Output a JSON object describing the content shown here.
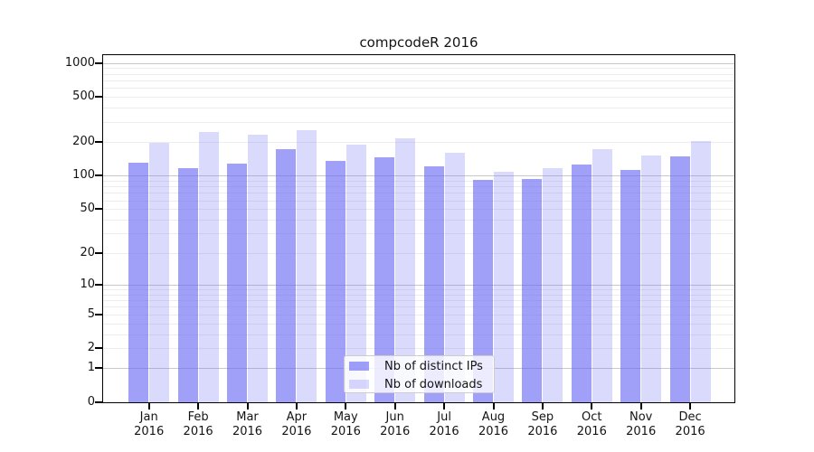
{
  "chart_data": {
    "type": "bar",
    "title": "compcodeR 2016",
    "categories": [
      "Jan 2016",
      "Feb 2016",
      "Mar 2016",
      "Apr 2016",
      "May 2016",
      "Jun 2016",
      "Jul 2016",
      "Aug 2016",
      "Sep 2016",
      "Oct 2016",
      "Nov 2016",
      "Dec 2016"
    ],
    "series": [
      {
        "name": "Nb of distinct IPs",
        "color": "rgba(102,102,245,0.62)",
        "values": [
          129,
          116,
          127,
          172,
          134,
          145,
          122,
          91,
          94,
          126,
          112,
          149
        ]
      },
      {
        "name": "Nb of downloads",
        "color": "rgba(102,102,245,0.24)",
        "values": [
          196,
          243,
          230,
          252,
          188,
          215,
          159,
          108,
          117,
          172,
          150,
          204
        ]
      }
    ],
    "xlabel": "",
    "ylabel": "",
    "y_ticks": [
      0,
      1,
      2,
      5,
      10,
      20,
      50,
      100,
      200,
      500,
      1000
    ],
    "y_scale": "log(value+1)",
    "ylim": [
      0,
      1000
    ],
    "grid": true,
    "legend_position": "inside-bottom-center",
    "colors": {
      "bar_dark": "#a6a6f7",
      "bar_light": "#d9d9f7",
      "grid_major": "#c9c9c9",
      "grid_minor": "#ededed",
      "axis": "#000000"
    }
  }
}
